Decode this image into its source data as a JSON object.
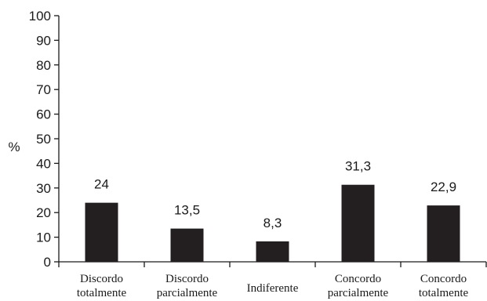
{
  "chart_data": {
    "type": "bar",
    "categories": [
      [
        "Discordo",
        "totalmente"
      ],
      [
        "Discordo",
        "parcialmente"
      ],
      [
        "Indiferente"
      ],
      [
        "Concordo",
        "parcialmente"
      ],
      [
        "Concordo",
        "totalmente"
      ]
    ],
    "values": [
      24,
      13.5,
      8.3,
      31.3,
      22.9
    ],
    "data_labels": [
      "24",
      "13,5",
      "8,3",
      "31,3",
      "22,9"
    ],
    "ylabel": "%",
    "xlabel": "",
    "ylim": [
      0,
      100
    ],
    "yticks": [
      0,
      10,
      20,
      30,
      40,
      50,
      60,
      70,
      80,
      90,
      100
    ],
    "bar_color": "#231f20",
    "grid": false
  }
}
